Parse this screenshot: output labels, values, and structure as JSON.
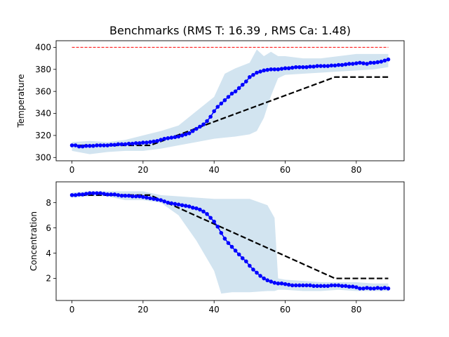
{
  "chart_data": [
    {
      "type": "line",
      "title": "Benchmarks (RMS T: 16.39 , RMS Ca: 1.48)",
      "xlabel": "",
      "ylabel": "Temperature",
      "xlim": [
        -4.45,
        93.45
      ],
      "ylim": [
        297,
        406
      ],
      "xticks": [
        0,
        20,
        40,
        60,
        80
      ],
      "yticks": [
        300,
        320,
        340,
        360,
        380,
        400
      ],
      "grid": false,
      "setpoint": {
        "color": "#ff0000",
        "style": "dashed",
        "x": [
          0,
          89
        ],
        "y": [
          400,
          400
        ]
      },
      "reference": {
        "color": "#000000",
        "style": "dashed",
        "x": [
          0,
          22,
          74,
          89
        ],
        "y": [
          311,
          311,
          373,
          373
        ]
      },
      "band": {
        "color": "#1f77b4",
        "opacity": 0.2,
        "x": [
          0,
          5,
          10,
          15,
          20,
          25,
          30,
          35,
          40,
          43,
          46,
          50,
          52,
          54,
          56,
          58,
          60,
          65,
          70,
          75,
          80,
          85,
          89
        ],
        "lower": [
          306,
          303,
          305,
          306,
          306,
          308,
          311,
          314,
          317,
          318,
          319,
          321,
          324,
          336,
          356,
          372,
          375,
          376,
          377,
          378,
          379,
          380,
          382
        ],
        "upper": [
          314,
          315,
          314,
          316,
          320,
          324,
          329,
          342,
          355,
          376,
          381,
          386,
          398,
          392,
          396,
          392,
          392,
          390,
          390,
          392,
          394,
          394,
          394
        ]
      },
      "series": [
        {
          "color": "#0000ff",
          "marker": "circle",
          "x": [
            0,
            1,
            2,
            3,
            4,
            5,
            6,
            7,
            8,
            9,
            10,
            11,
            12,
            13,
            14,
            15,
            16,
            17,
            18,
            19,
            20,
            21,
            22,
            23,
            24,
            25,
            26,
            27,
            28,
            29,
            30,
            31,
            32,
            33,
            34,
            35,
            36,
            37,
            38,
            39,
            40,
            41,
            42,
            43,
            44,
            45,
            46,
            47,
            48,
            49,
            50,
            51,
            52,
            53,
            54,
            55,
            56,
            57,
            58,
            59,
            60,
            61,
            62,
            63,
            64,
            65,
            66,
            67,
            68,
            69,
            70,
            71,
            72,
            73,
            74,
            75,
            76,
            77,
            78,
            79,
            80,
            81,
            82,
            83,
            84,
            85,
            86,
            87,
            88,
            89
          ],
          "y": [
            311,
            311,
            310,
            310,
            310.5,
            310.5,
            310.5,
            311,
            311,
            311,
            311,
            311.5,
            311.5,
            312,
            312,
            312,
            312.5,
            312.5,
            313,
            313,
            313.5,
            313.5,
            314,
            314.5,
            315,
            316,
            317,
            317.5,
            318,
            318.5,
            319,
            320,
            321,
            322,
            324,
            326,
            328,
            330,
            333,
            337,
            342,
            346,
            349,
            352,
            355,
            358,
            360,
            363,
            366,
            369,
            373,
            375,
            377,
            378,
            379,
            379.5,
            380,
            380,
            380,
            380.5,
            381,
            381,
            381.5,
            382,
            382,
            382,
            382,
            382.5,
            382.5,
            383,
            383,
            383,
            383,
            383.5,
            383.5,
            384,
            384,
            384.5,
            385,
            385,
            385.5,
            386,
            385.5,
            385,
            386,
            386,
            386.5,
            387,
            388,
            389
          ]
        }
      ]
    },
    {
      "type": "line",
      "title": "",
      "xlabel": "",
      "ylabel": "Concentration",
      "xlim": [
        -4.45,
        93.45
      ],
      "ylim": [
        0.25,
        9.65
      ],
      "xticks": [
        0,
        20,
        40,
        60,
        80
      ],
      "yticks": [
        2,
        4,
        6,
        8
      ],
      "grid": false,
      "reference": {
        "color": "#000000",
        "style": "dashed",
        "x": [
          0,
          22,
          74,
          89
        ],
        "y": [
          8.6,
          8.6,
          2.0,
          2.0
        ]
      },
      "band": {
        "color": "#1f77b4",
        "opacity": 0.2,
        "x": [
          0,
          5,
          10,
          15,
          20,
          25,
          30,
          35,
          40,
          42,
          45,
          50,
          55,
          57,
          58,
          60,
          65,
          70,
          75,
          80,
          85,
          89
        ],
        "lower": [
          8.4,
          8.5,
          8.5,
          8.2,
          8.2,
          8.0,
          7.0,
          5.0,
          2.6,
          0.8,
          0.9,
          0.9,
          1.0,
          1.0,
          1.1,
          1.1,
          1.0,
          1.0,
          1.1,
          1.0,
          1.0,
          1.0
        ],
        "upper": [
          8.8,
          8.9,
          8.9,
          8.9,
          8.9,
          8.6,
          8.5,
          8.4,
          8.3,
          8.3,
          8.3,
          8.3,
          7.8,
          6.8,
          2.0,
          1.9,
          1.8,
          1.7,
          1.7,
          1.7,
          1.6,
          1.6
        ]
      },
      "series": [
        {
          "color": "#0000ff",
          "marker": "circle",
          "x": [
            0,
            1,
            2,
            3,
            4,
            5,
            6,
            7,
            8,
            9,
            10,
            11,
            12,
            13,
            14,
            15,
            16,
            17,
            18,
            19,
            20,
            21,
            22,
            23,
            24,
            25,
            26,
            27,
            28,
            29,
            30,
            31,
            32,
            33,
            34,
            35,
            36,
            37,
            38,
            39,
            40,
            41,
            42,
            43,
            44,
            45,
            46,
            47,
            48,
            49,
            50,
            51,
            52,
            53,
            54,
            55,
            56,
            57,
            58,
            59,
            60,
            61,
            62,
            63,
            64,
            65,
            66,
            67,
            68,
            69,
            70,
            71,
            72,
            73,
            74,
            75,
            76,
            77,
            78,
            79,
            80,
            81,
            82,
            83,
            84,
            85,
            86,
            87,
            88,
            89
          ],
          "y": [
            8.6,
            8.6,
            8.65,
            8.65,
            8.7,
            8.75,
            8.75,
            8.75,
            8.75,
            8.7,
            8.65,
            8.65,
            8.65,
            8.6,
            8.55,
            8.55,
            8.55,
            8.5,
            8.5,
            8.5,
            8.45,
            8.4,
            8.35,
            8.3,
            8.25,
            8.2,
            8.1,
            8.0,
            7.95,
            7.9,
            7.85,
            7.8,
            7.75,
            7.7,
            7.6,
            7.55,
            7.45,
            7.3,
            7.1,
            6.8,
            6.5,
            6.1,
            5.6,
            5.15,
            4.8,
            4.5,
            4.2,
            3.9,
            3.6,
            3.35,
            3.0,
            2.7,
            2.45,
            2.2,
            2.0,
            1.85,
            1.75,
            1.65,
            1.6,
            1.6,
            1.55,
            1.5,
            1.45,
            1.45,
            1.45,
            1.45,
            1.45,
            1.45,
            1.4,
            1.4,
            1.4,
            1.4,
            1.4,
            1.45,
            1.45,
            1.45,
            1.4,
            1.4,
            1.35,
            1.35,
            1.3,
            1.2,
            1.2,
            1.25,
            1.2,
            1.2,
            1.25,
            1.2,
            1.25,
            1.2
          ]
        }
      ]
    }
  ]
}
